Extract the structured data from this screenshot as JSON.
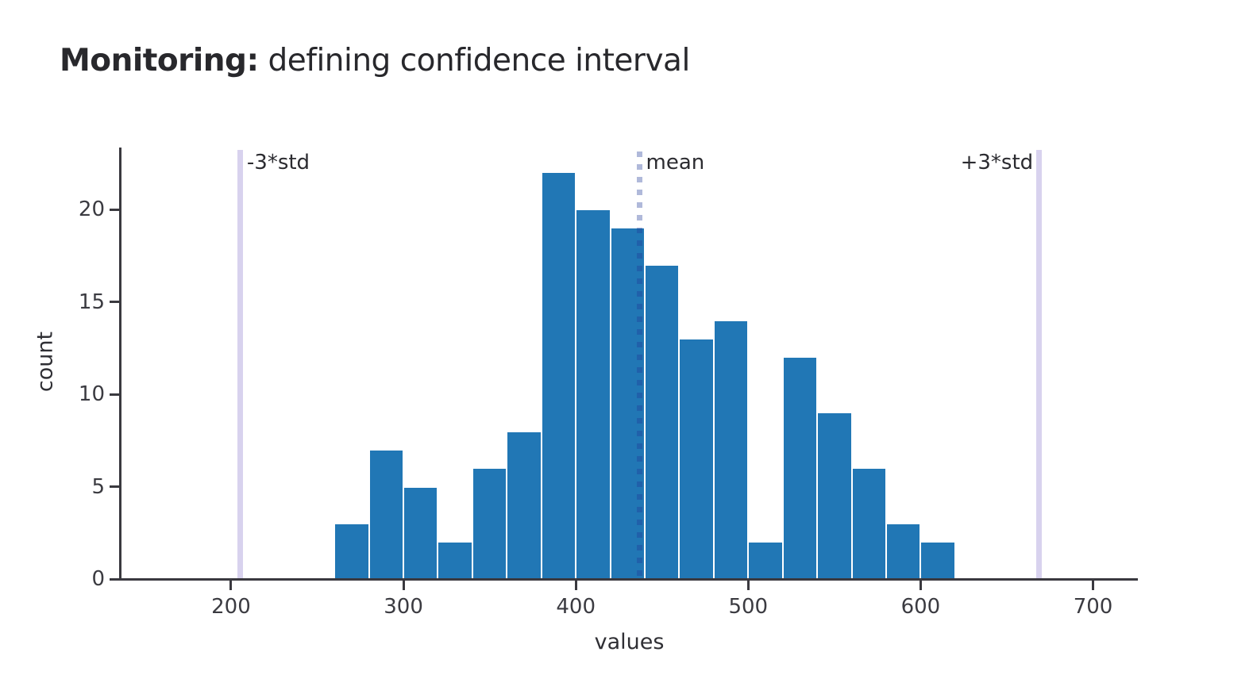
{
  "title": {
    "bold_part": "Monitoring:",
    "regular_part": " defining confidence interval"
  },
  "chart_data": {
    "type": "bar",
    "subtype": "histogram",
    "title": "Monitoring: defining confidence interval",
    "xlabel": "values",
    "ylabel": "count",
    "grid": false,
    "legend": "none",
    "x_range": [
      136,
      726
    ],
    "y_range": [
      0,
      23.35
    ],
    "x_ticks": [
      200,
      300,
      400,
      500,
      600,
      700
    ],
    "y_ticks": [
      0,
      5,
      10,
      15,
      20
    ],
    "bin_width": 20,
    "bin_edges": [
      260,
      280,
      300,
      320,
      340,
      360,
      380,
      400,
      420,
      440,
      460,
      480,
      500,
      520,
      540,
      560,
      580,
      600,
      620
    ],
    "counts": [
      3,
      7,
      5,
      2,
      6,
      8,
      22,
      20,
      19,
      17,
      13,
      14,
      2,
      12,
      9,
      6,
      3,
      2
    ],
    "annotations": [
      {
        "label": "-3*std",
        "x": 205.5,
        "style": "band",
        "label_side": "right"
      },
      {
        "label": "mean",
        "x": 437.0,
        "style": "dotted",
        "label_side": "right"
      },
      {
        "label": "+3*std",
        "x": 668.5,
        "style": "band",
        "label_side": "left"
      }
    ],
    "colors": {
      "bar_fill": "#2177b5",
      "bar_edge": "#ffffff",
      "band_line": "#d8d2ee",
      "mean_line": "rgba(30,55,150,0.35)",
      "axis": "#3a393f",
      "tick_text": "#3b3b41",
      "title_text": "#28282c",
      "background": "#ffffff"
    }
  }
}
